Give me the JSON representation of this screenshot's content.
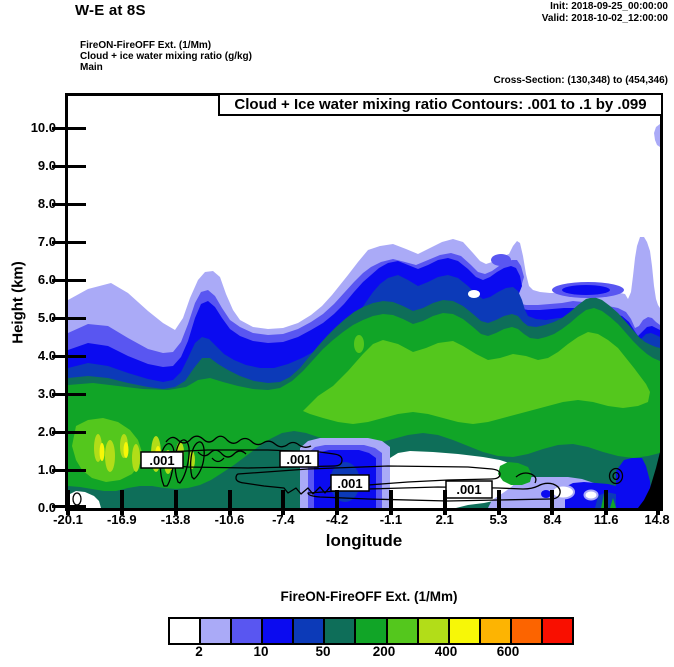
{
  "header": {
    "title": "W-E at 8S",
    "init": "Init: 2018-09-25_00:00:00",
    "valid": "Valid: 2018-10-02_12:00:00",
    "line1": "FireON-FireOFF Ext.   (1/Mm)",
    "line2": "Cloud + ice water mixing ratio   (g/kg)",
    "line3": "Main",
    "cross_section": "Cross-Section: (130,348) to (454,346)"
  },
  "plot": {
    "title_box": "Cloud + Ice water mixing ratio Contours: .001 to .1 by .099",
    "contour_label": ".001"
  },
  "axes": {
    "y": {
      "label": "Height (km)",
      "ticks": [
        "10.0",
        "9.0",
        "8.0",
        "7.0",
        "6.0",
        "5.0",
        "4.0",
        "3.0",
        "2.0",
        "1.0",
        "0.0"
      ]
    },
    "x": {
      "label": "longitude",
      "ticks": [
        "-20.1",
        "-16.9",
        "-13.8",
        "-10.6",
        "-7.4",
        "-4.2",
        "-1.1",
        "2.1",
        "5.3",
        "8.4",
        "11.6",
        "14.8"
      ]
    }
  },
  "colorbar": {
    "title": "FireON-FireOFF Ext.  (1/Mm)",
    "labels": [
      "2",
      "10",
      "50",
      "200",
      "400",
      "600"
    ],
    "colors": [
      "#ffffff",
      "#aaaaf7",
      "#5956f1",
      "#0b0bf0",
      "#0c3ab8",
      "#0e6e59",
      "#11a527",
      "#54c71d",
      "#b2dd18",
      "#f7f707",
      "#fdb402",
      "#fc6400",
      "#f90f00"
    ]
  },
  "chart_data": {
    "type": "heatmap",
    "subtype": "filled-contour vertical cross-section with line-contour overlay",
    "title": "Cloud + Ice water mixing ratio Contours: .001 to .1 by .099",
    "xlabel": "longitude",
    "ylabel": "Height (km)",
    "xlim": [
      -20.1,
      14.8
    ],
    "ylim": [
      0.0,
      10.8
    ],
    "x_ticks": [
      -20.1,
      -16.9,
      -13.8,
      -10.6,
      -7.4,
      -4.2,
      -1.1,
      2.1,
      5.3,
      8.4,
      11.6,
      14.8
    ],
    "y_ticks": [
      0.0,
      1.0,
      2.0,
      3.0,
      4.0,
      5.0,
      6.0,
      7.0,
      8.0,
      9.0,
      10.0
    ],
    "fill_field": "FireON-FireOFF Ext. (1/Mm)",
    "fill_scale_labeled_levels": [
      2,
      10,
      50,
      200,
      400,
      600
    ],
    "fill_palette": [
      "#ffffff",
      "#aaaaf7",
      "#5956f1",
      "#0b0bf0",
      "#0c3ab8",
      "#0e6e59",
      "#11a527",
      "#54c71d",
      "#b2dd18",
      "#f7f707",
      "#fdb402",
      "#fc6400",
      "#f90f00"
    ],
    "contour_overlay_field": "Cloud + Ice water mixing ratio (g/kg)",
    "contour_levels": [
      0.001,
      0.1
    ],
    "contour_interval": 0.099,
    "contour_label": ".001",
    "init_time": "2018-09-25_00:00:00",
    "valid_time": "2018-10-02_12:00:00",
    "cross_section_gridpoints": "(130,348) to (454,346)",
    "notes": "Stratified extinction-difference cloud layer between ~0.5 and ~6.5 km; strongest values (yellow/green speckles) near -17 to -15 longitude below 2 km; green core 1.5-4 km across right half; clear white notch near surface between -8 and -2 longitude; black terrain wedge at lower-right corner; .001 g/kg cloud-water contours hug the 0.5-1.5 km layer."
  }
}
